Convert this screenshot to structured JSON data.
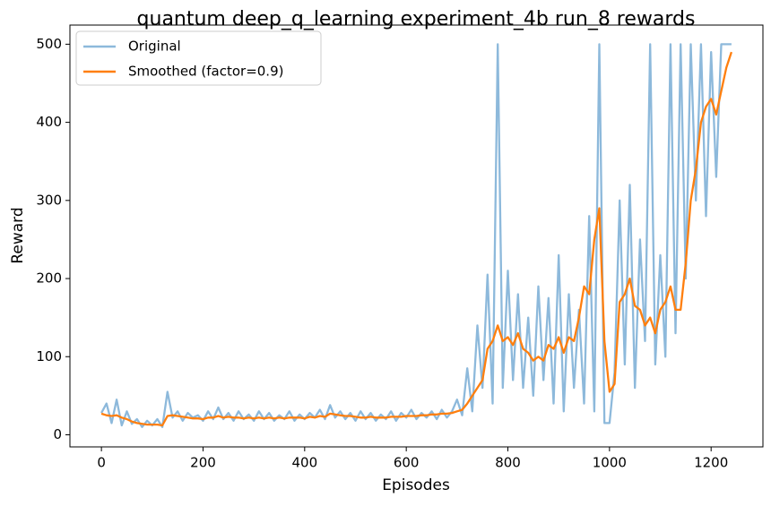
{
  "chart_data": {
    "type": "line",
    "title": "quantum deep_q_learning experiment_4b run_8 rewards",
    "x_label": "Episodes",
    "y_label": "Reward",
    "x": [
      0,
      10,
      20,
      30,
      40,
      50,
      60,
      70,
      80,
      90,
      100,
      110,
      120,
      130,
      140,
      150,
      160,
      170,
      180,
      190,
      200,
      210,
      220,
      230,
      240,
      250,
      260,
      270,
      280,
      290,
      300,
      310,
      320,
      330,
      340,
      350,
      360,
      370,
      380,
      390,
      400,
      410,
      420,
      430,
      440,
      450,
      460,
      470,
      480,
      490,
      500,
      510,
      520,
      530,
      540,
      550,
      560,
      570,
      580,
      590,
      600,
      610,
      620,
      630,
      640,
      650,
      660,
      670,
      680,
      690,
      700,
      710,
      720,
      730,
      740,
      750,
      760,
      770,
      780,
      790,
      800,
      810,
      820,
      830,
      840,
      850,
      860,
      870,
      880,
      890,
      900,
      910,
      920,
      930,
      940,
      950,
      960,
      970,
      980,
      990,
      1000,
      1010,
      1020,
      1030,
      1040,
      1050,
      1060,
      1070,
      1080,
      1090,
      1100,
      1110,
      1120,
      1130,
      1140,
      1150,
      1160,
      1170,
      1180,
      1190,
      1200,
      1210,
      1220,
      1230,
      1240
    ],
    "series": [
      {
        "name": "Original",
        "color": "#8db9db",
        "values": [
          28,
          40,
          15,
          45,
          12,
          30,
          14,
          20,
          10,
          18,
          12,
          20,
          10,
          55,
          22,
          30,
          18,
          28,
          22,
          25,
          18,
          30,
          20,
          35,
          20,
          28,
          18,
          30,
          20,
          26,
          18,
          30,
          20,
          28,
          18,
          25,
          20,
          30,
          18,
          26,
          20,
          28,
          22,
          32,
          20,
          38,
          22,
          30,
          20,
          28,
          18,
          30,
          20,
          28,
          18,
          26,
          20,
          30,
          18,
          28,
          22,
          32,
          20,
          28,
          22,
          30,
          20,
          32,
          22,
          30,
          45,
          25,
          85,
          30,
          140,
          60,
          205,
          40,
          500,
          60,
          210,
          70,
          180,
          60,
          150,
          50,
          190,
          70,
          175,
          40,
          230,
          30,
          180,
          60,
          160,
          40,
          280,
          30,
          500,
          15,
          15,
          80,
          300,
          90,
          320,
          60,
          250,
          120,
          500,
          90,
          230,
          100,
          500,
          130,
          500,
          200,
          500,
          300,
          500,
          280,
          490,
          330,
          500,
          500,
          500
        ]
      },
      {
        "name": "Smoothed (factor=0.9)",
        "color": "#ff7f0e",
        "values": [
          27,
          25,
          24,
          25,
          22,
          20,
          17,
          15,
          14,
          13,
          13,
          13,
          12,
          24,
          25,
          24,
          23,
          22,
          21,
          21,
          20,
          22,
          22,
          24,
          22,
          23,
          22,
          22,
          21,
          22,
          21,
          22,
          21,
          22,
          21,
          22,
          21,
          22,
          22,
          22,
          21,
          23,
          22,
          24,
          23,
          27,
          26,
          25,
          24,
          24,
          23,
          22,
          22,
          23,
          22,
          22,
          22,
          23,
          23,
          23,
          24,
          24,
          24,
          25,
          25,
          26,
          26,
          27,
          27,
          28,
          30,
          32,
          40,
          50,
          60,
          70,
          110,
          120,
          140,
          120,
          125,
          115,
          130,
          110,
          105,
          95,
          100,
          95,
          115,
          110,
          125,
          105,
          125,
          120,
          150,
          190,
          180,
          250,
          290,
          120,
          55,
          65,
          170,
          180,
          200,
          165,
          160,
          140,
          150,
          130,
          160,
          170,
          190,
          160,
          160,
          220,
          300,
          340,
          400,
          420,
          430,
          410,
          440,
          470,
          490
        ]
      }
    ],
    "xlim": [
      -62,
      1302
    ],
    "ylim": [
      -15.5,
      524.5
    ],
    "xticks": [
      0,
      200,
      400,
      600,
      800,
      1000,
      1200
    ],
    "yticks": [
      0,
      100,
      200,
      300,
      400,
      500
    ],
    "legend": "upper left"
  }
}
